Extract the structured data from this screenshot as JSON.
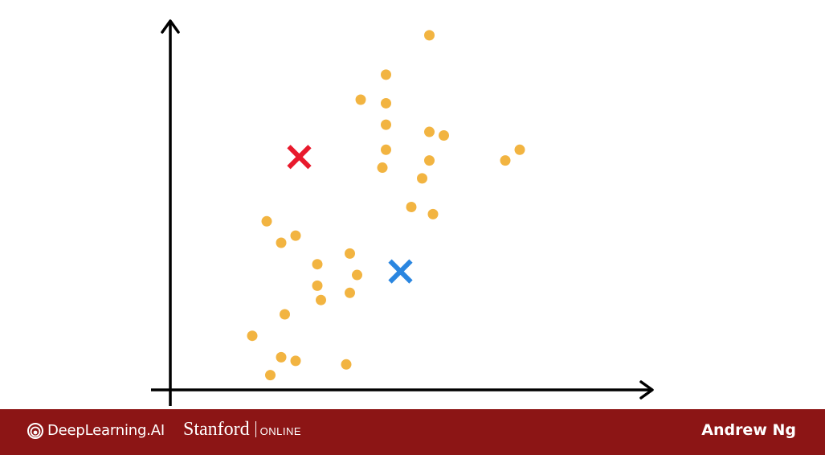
{
  "chart_data": {
    "type": "scatter",
    "title": "",
    "xlabel": "",
    "ylabel": "",
    "xlim": [
      0,
      10
    ],
    "ylim": [
      0,
      10
    ],
    "grid": false,
    "legend": "none",
    "series": [
      {
        "marker": "dot",
        "color": "#f2b441",
        "points": [
          [
            6.1,
            9.8
          ],
          [
            4.9,
            8.7
          ],
          [
            4.2,
            8.0
          ],
          [
            4.9,
            7.9
          ],
          [
            6.1,
            7.1
          ],
          [
            6.5,
            7.0
          ],
          [
            4.9,
            7.3
          ],
          [
            4.9,
            6.6
          ],
          [
            4.8,
            6.1
          ],
          [
            6.1,
            6.3
          ],
          [
            8.2,
            6.3
          ],
          [
            8.6,
            6.6
          ],
          [
            5.9,
            5.8
          ],
          [
            5.6,
            5.0
          ],
          [
            6.2,
            4.8
          ],
          [
            1.6,
            4.6
          ],
          [
            2.0,
            4.0
          ],
          [
            2.4,
            4.2
          ],
          [
            3.0,
            3.4
          ],
          [
            3.9,
            3.7
          ],
          [
            4.1,
            3.1
          ],
          [
            3.0,
            2.8
          ],
          [
            3.1,
            2.4
          ],
          [
            3.9,
            2.6
          ],
          [
            2.1,
            2.0
          ],
          [
            1.2,
            1.4
          ],
          [
            2.0,
            0.8
          ],
          [
            2.4,
            0.7
          ],
          [
            3.8,
            0.6
          ],
          [
            1.7,
            0.3
          ]
        ]
      },
      {
        "marker": "x",
        "color": "#e8192c",
        "points": [
          [
            2.5,
            6.4
          ]
        ]
      },
      {
        "marker": "x",
        "color": "#2a86e0",
        "points": [
          [
            5.3,
            3.2
          ]
        ]
      }
    ]
  },
  "colors": {
    "axis": "#000000",
    "footer_bg": "#8c1515",
    "footer_text": "#ffffff"
  },
  "footer": {
    "brand_logo_icon": "deeplearning-ai-logo-icon",
    "brand_name": "DeepLearning.AI",
    "university": "Stanford",
    "university_suffix": "ONLINE",
    "presenter": "Andrew Ng"
  }
}
